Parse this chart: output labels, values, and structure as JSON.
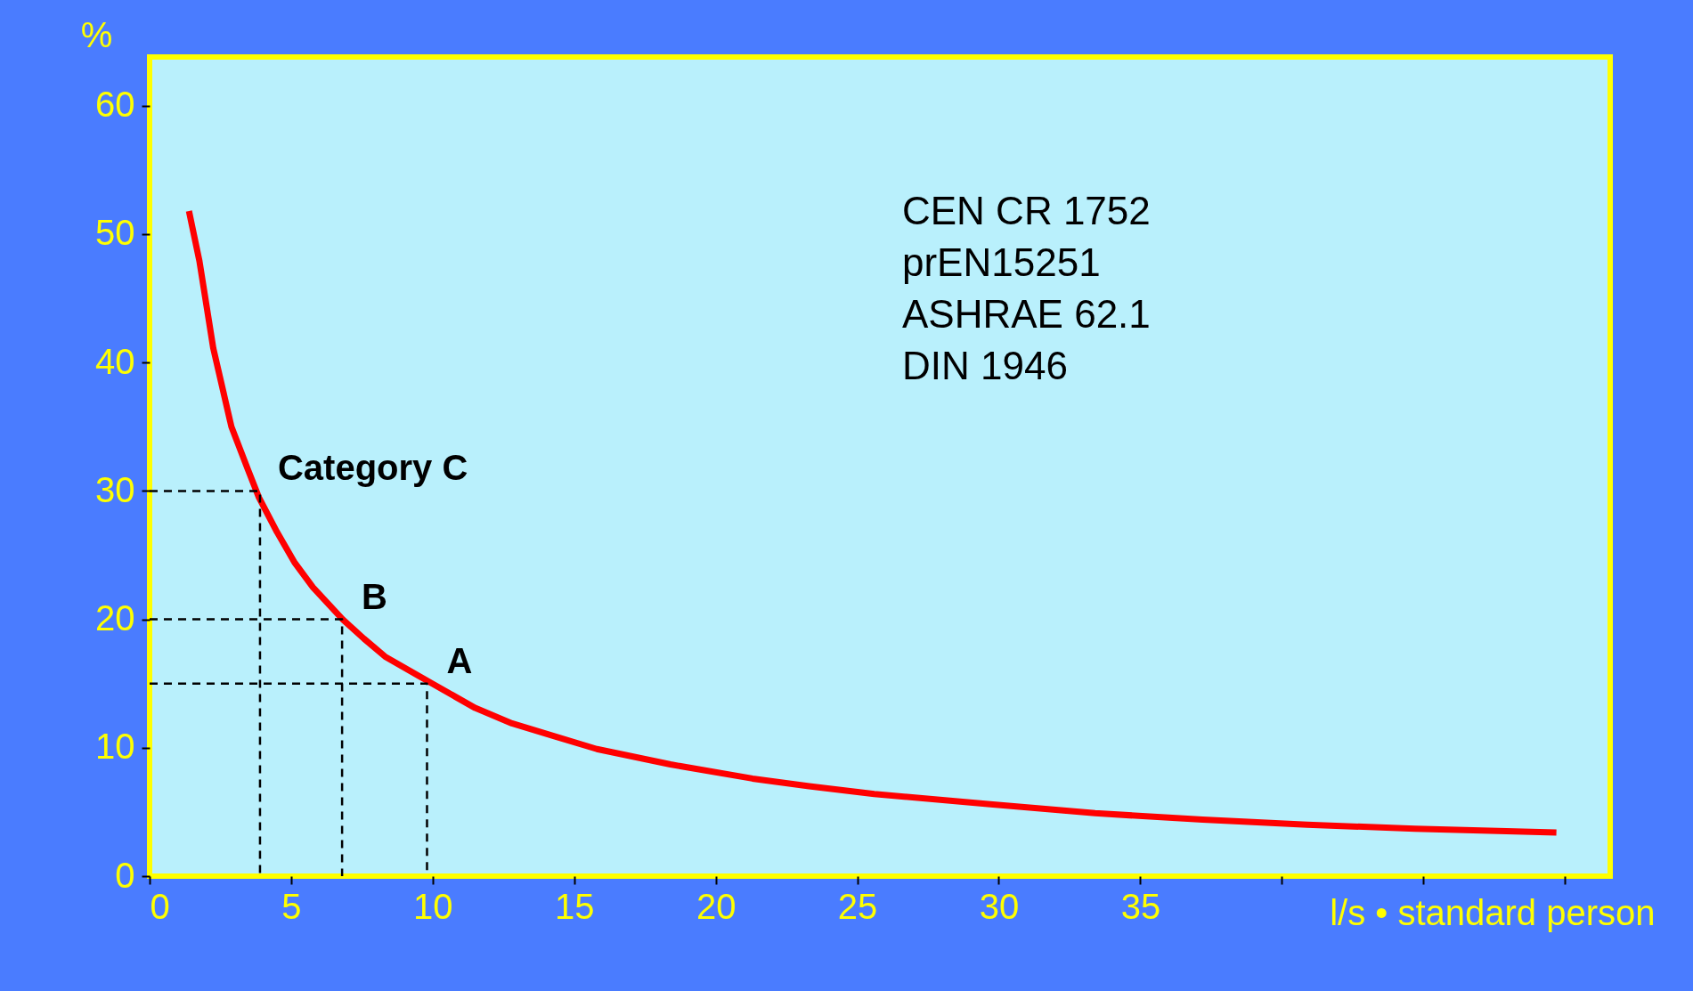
{
  "chart_data": {
    "type": "line",
    "ylabel": "%",
    "xlabel": "l/s • standard person",
    "xlim": [
      0,
      51.6
    ],
    "ylim": [
      0,
      63.8
    ],
    "xticks": [
      0,
      5,
      10,
      15,
      20,
      25,
      30,
      35,
      {
        "value": 40,
        "label": null
      },
      {
        "value": 45,
        "label": null
      },
      {
        "value": 50,
        "label": null
      }
    ],
    "yticks": [
      0,
      10,
      20,
      30,
      40,
      50,
      60
    ],
    "grid": false,
    "marker": "none",
    "series": [
      {
        "color": "#ff0000",
        "line_style": "solid",
        "x": [
          1.39,
          1.76,
          2.25,
          2.89,
          3.45,
          3.86,
          4.5,
          5.13,
          5.77,
          6.82,
          7.57,
          8.32,
          9.82,
          11.5,
          12.8,
          14.3,
          15.8,
          18.4,
          21.3,
          23.3,
          25.6,
          29.7,
          33.4,
          37.2,
          40.9,
          44.7,
          49.7
        ],
        "values": [
          51.8,
          47.9,
          41.1,
          35.0,
          31.8,
          29.5,
          26.8,
          24.4,
          22.5,
          20.0,
          18.5,
          17.1,
          15.2,
          13.1,
          11.9,
          10.9,
          9.9,
          8.7,
          7.6,
          7.0,
          6.4,
          5.6,
          4.9,
          4.4,
          4.0,
          3.7,
          3.4
        ]
      },
      {
        "color": "#000000",
        "line_style": "dashed",
        "x": [
          0,
          3.9,
          3.9
        ],
        "values": [
          30,
          30,
          0
        ]
      },
      {
        "color": "#000000",
        "line_style": "dashed",
        "x": [
          0,
          6.8,
          6.8
        ],
        "values": [
          20,
          20,
          0
        ]
      },
      {
        "color": "#000000",
        "line_style": "dashed",
        "x": [
          0,
          9.8,
          9.8
        ],
        "values": [
          15,
          15,
          0
        ]
      }
    ],
    "annotations": [
      {
        "text": "Category  C",
        "x": 3.9,
        "y": 30
      },
      {
        "text": "B",
        "x": 6.8,
        "y": 20
      },
      {
        "text": "A",
        "x": 9.8,
        "y": 15
      },
      "CEN CR 1752",
      "prEN15251",
      "ASHRAE 62.1",
      "DIN 1946"
    ]
  }
}
